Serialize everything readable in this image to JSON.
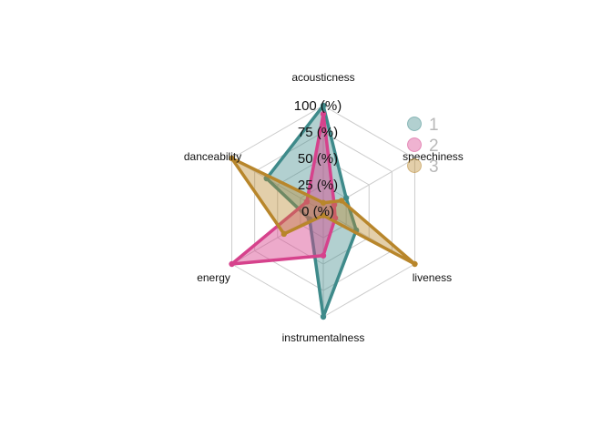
{
  "chart_data": {
    "type": "radar",
    "axes": [
      "acousticness",
      "speechiness",
      "liveness",
      "instrumentalness",
      "energy",
      "danceability"
    ],
    "grid_labels": [
      "0 (%)",
      "25 (%)",
      "50 (%)",
      "75 (%)",
      "100 (%)"
    ],
    "range": [
      0,
      100
    ],
    "series": [
      {
        "name": "1",
        "color": "#3e8a8a",
        "fill_opacity": 0.4,
        "values": [
          100,
          25,
          36,
          100,
          15,
          62
        ]
      },
      {
        "name": "2",
        "color": "#d6428c",
        "fill_opacity": 0.45,
        "values": [
          92,
          12,
          13,
          42,
          100,
          18
        ]
      },
      {
        "name": "3",
        "color": "#b8862b",
        "fill_opacity": 0.4,
        "values": [
          8,
          20,
          100,
          4,
          43,
          100
        ]
      }
    ],
    "legend_position": "top-right"
  }
}
